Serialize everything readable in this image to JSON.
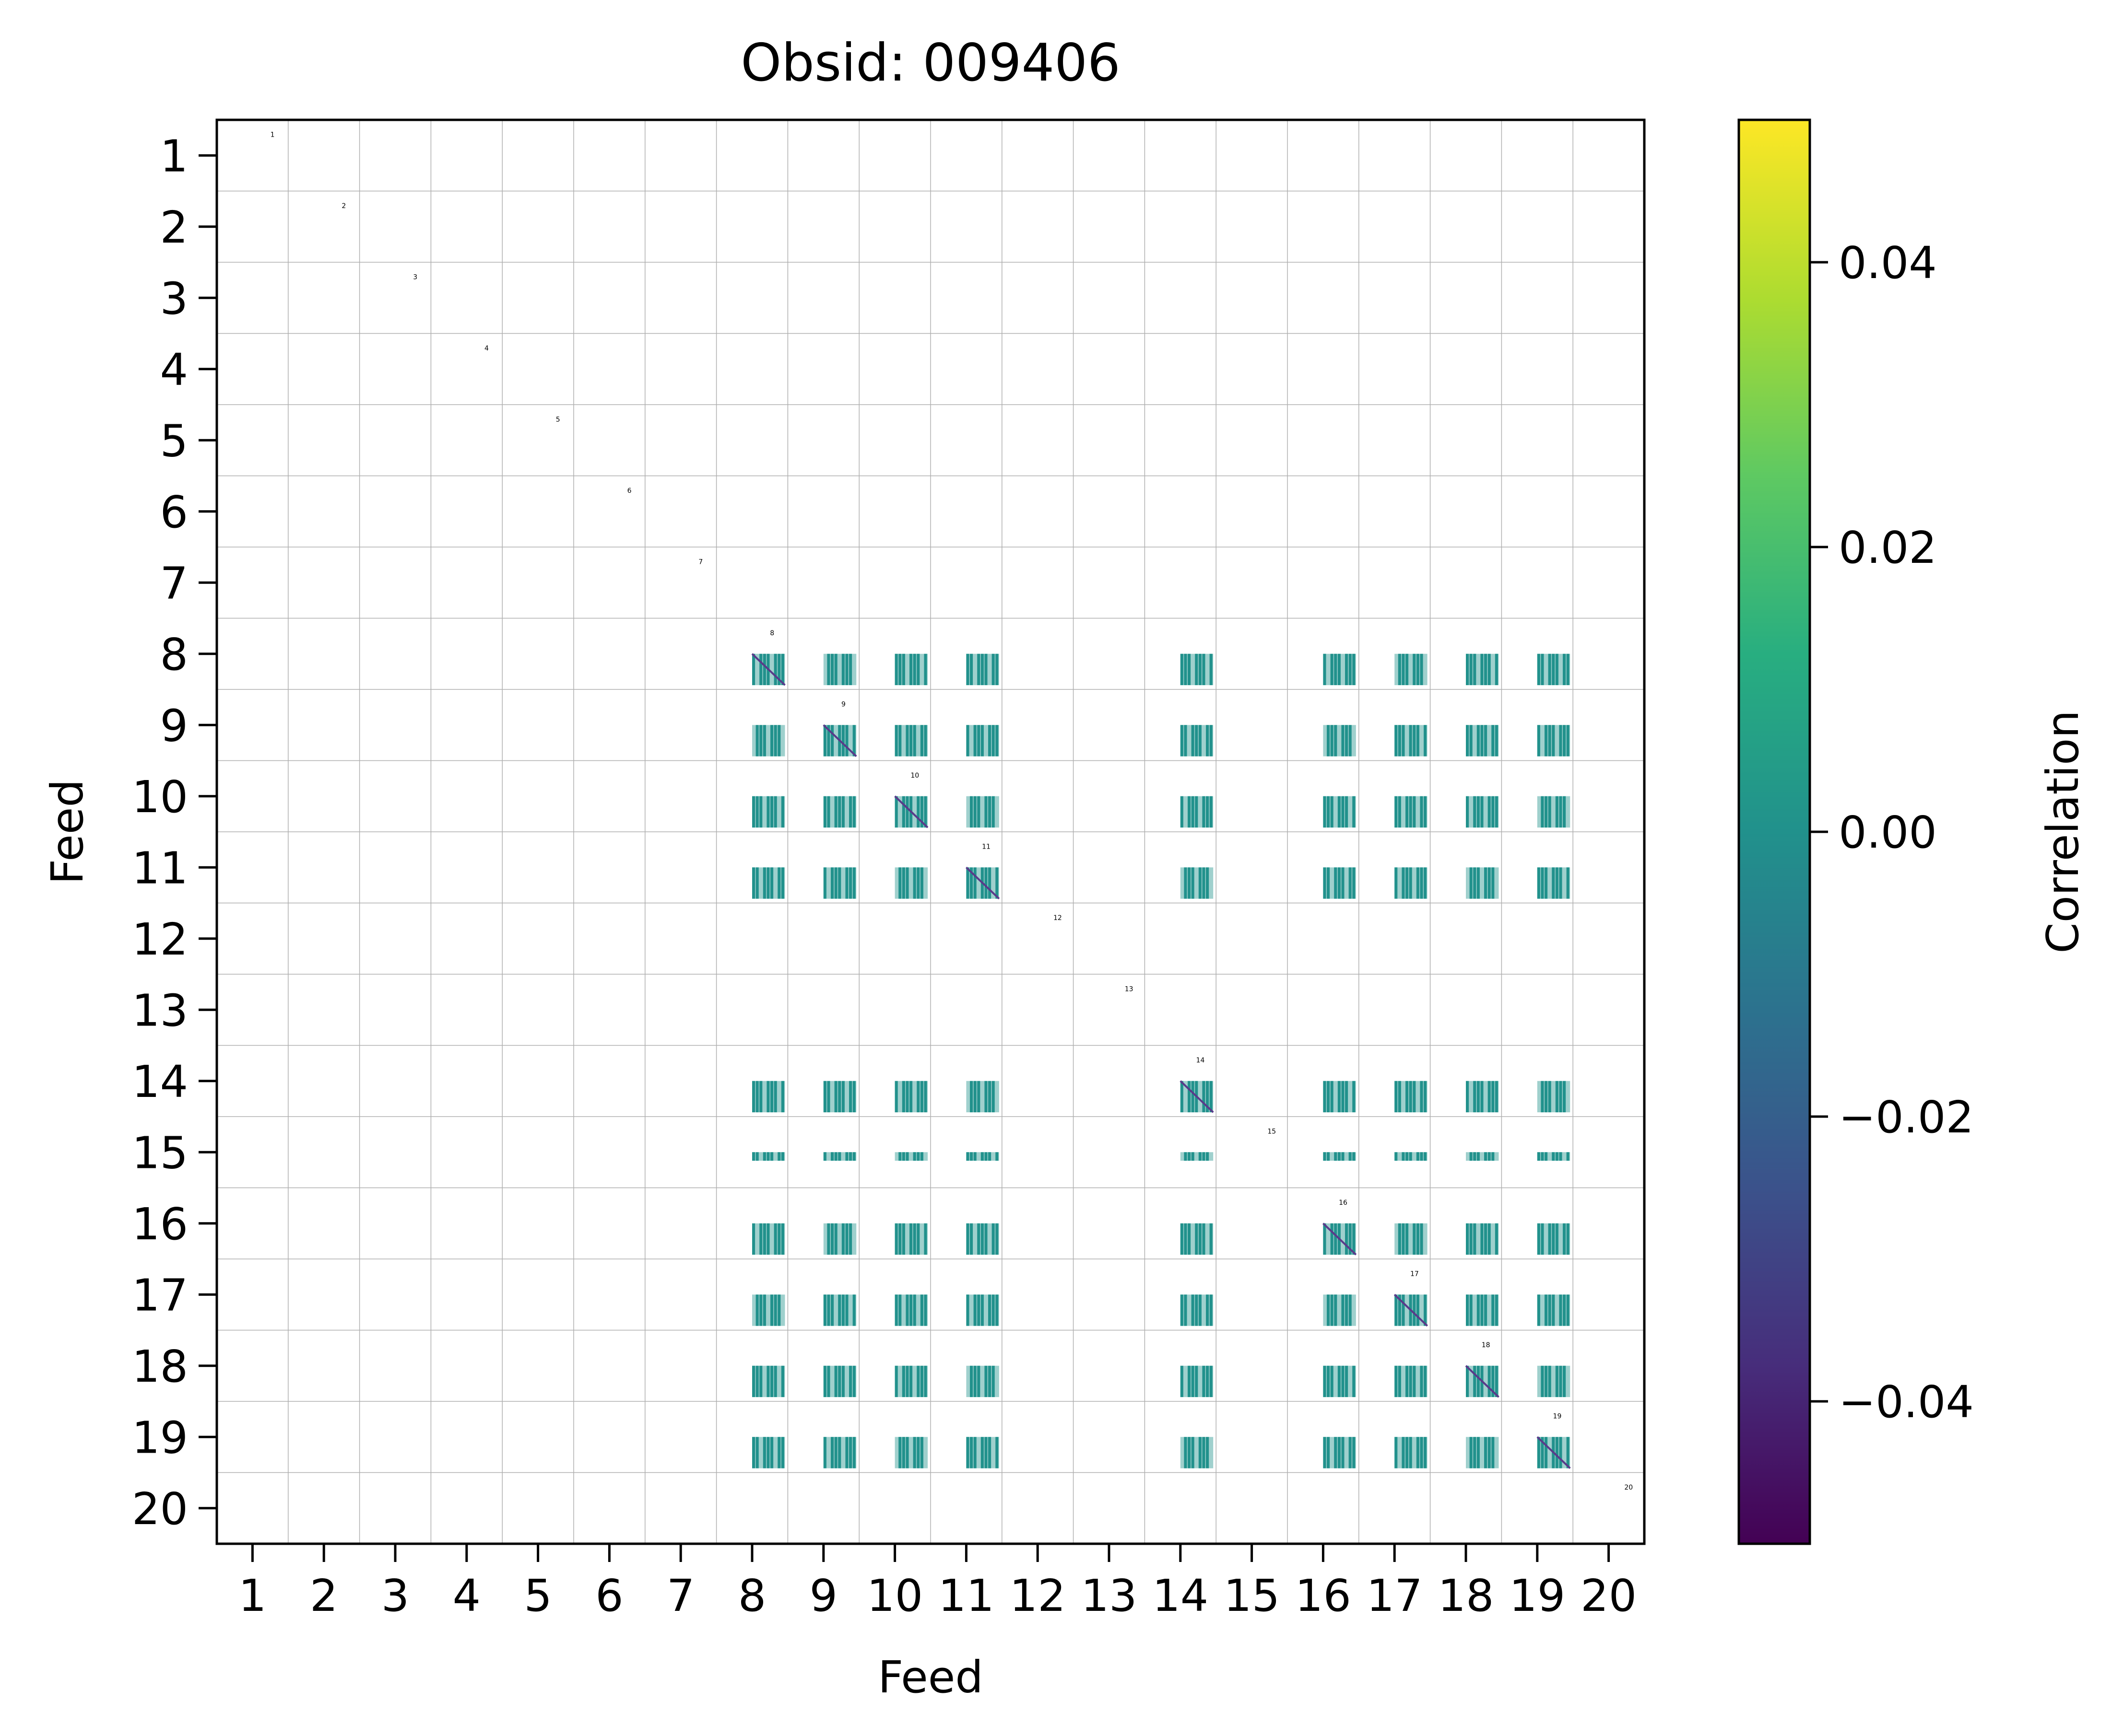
{
  "chart_data": {
    "type": "heatmap",
    "title": "Obsid: 009406",
    "xlabel": "Feed",
    "ylabel": "Feed",
    "x_ticks": [
      "1",
      "2",
      "3",
      "4",
      "5",
      "6",
      "7",
      "8",
      "9",
      "10",
      "11",
      "12",
      "13",
      "14",
      "15",
      "16",
      "17",
      "18",
      "19",
      "20"
    ],
    "y_ticks": [
      "1",
      "2",
      "3",
      "4",
      "5",
      "6",
      "7",
      "8",
      "9",
      "10",
      "11",
      "12",
      "13",
      "14",
      "15",
      "16",
      "17",
      "18",
      "19",
      "20"
    ],
    "feed_count": 20,
    "grid": true,
    "diagonal_labels": [
      "1",
      "2",
      "3",
      "4",
      "5",
      "6",
      "7",
      "8",
      "9",
      "10",
      "11",
      "12",
      "13",
      "14",
      "15",
      "16",
      "17",
      "18",
      "19",
      "20"
    ],
    "active_feeds": [
      8,
      9,
      10,
      11,
      14,
      16,
      17,
      18,
      19
    ],
    "partial_rows": [
      15
    ],
    "colormap": "viridis",
    "colorbar": {
      "label": "Correlation",
      "min": -0.05,
      "max": 0.05,
      "ticks": [
        "0.04",
        "0.02",
        "0.00",
        "−0.02",
        "−0.04"
      ],
      "tick_values": [
        0.04,
        0.02,
        0.0,
        -0.02,
        -0.04
      ]
    },
    "colors": {
      "block": "#21918c",
      "block_light": "#9fd0cd",
      "diagonal_line": "#5a3a8a",
      "grid_line": "#b0b0b0"
    }
  }
}
